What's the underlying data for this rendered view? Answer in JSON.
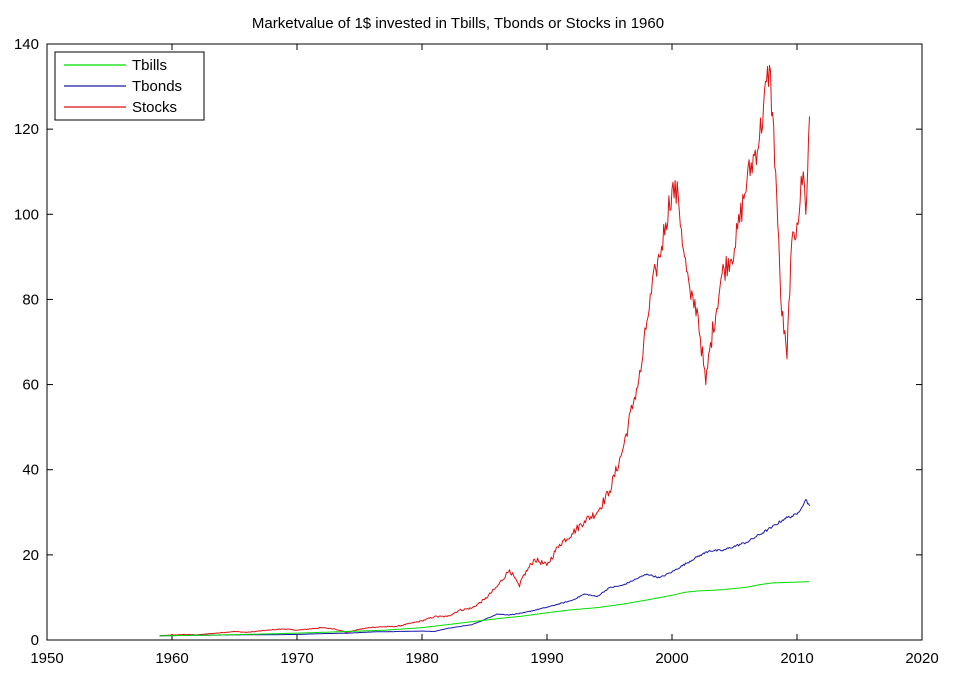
{
  "chart_data": {
    "type": "line",
    "title": "Marketvalue of 1$ invested in Tbills, Tbonds or Stocks in 1960",
    "xlabel": "",
    "ylabel": "",
    "xlim": [
      1950,
      2020
    ],
    "ylim": [
      0,
      140
    ],
    "xticks": [
      1950,
      1960,
      1970,
      1980,
      1990,
      2000,
      2010,
      2020
    ],
    "yticks": [
      0,
      20,
      40,
      60,
      80,
      100,
      120,
      140
    ],
    "xtick_labels": [
      "1950",
      "1960",
      "1970",
      "1980",
      "1990",
      "2000",
      "2010",
      "2020"
    ],
    "ytick_labels": [
      "0",
      "20",
      "40",
      "60",
      "80",
      "100",
      "120",
      "140"
    ],
    "grid": false,
    "legend_position": "top-left",
    "series": [
      {
        "name": "Tbills",
        "color": "#00dd00",
        "x": [
          1959,
          1962,
          1965,
          1968,
          1971,
          1974,
          1977,
          1980,
          1982,
          1984,
          1986,
          1988,
          1990,
          1992,
          1994,
          1996,
          1998,
          2000,
          2001,
          2002,
          2004,
          2006,
          2007,
          2008,
          2009,
          2010,
          2011
        ],
        "y": [
          1.0,
          1.1,
          1.25,
          1.45,
          1.7,
          2.0,
          2.3,
          2.9,
          3.6,
          4.3,
          5.0,
          5.6,
          6.4,
          7.1,
          7.6,
          8.4,
          9.4,
          10.5,
          11.2,
          11.5,
          11.8,
          12.4,
          13.0,
          13.4,
          13.5,
          13.6,
          13.7
        ]
      },
      {
        "name": "Tbonds",
        "color": "#1a1aaa",
        "x": [
          1959,
          1962,
          1965,
          1968,
          1970,
          1972,
          1974,
          1976,
          1978,
          1980,
          1981,
          1982,
          1984,
          1985,
          1986,
          1987,
          1988,
          1990,
          1992,
          1993,
          1994,
          1995,
          1996,
          1998,
          1999,
          2000,
          2002,
          2003,
          2004,
          2006,
          2008,
          2009,
          2010,
          2010.7,
          2011
        ],
        "y": [
          1.0,
          1.1,
          1.2,
          1.25,
          1.3,
          1.5,
          1.6,
          1.9,
          2.0,
          2.1,
          2.0,
          2.7,
          3.6,
          4.8,
          6.1,
          5.9,
          6.3,
          7.7,
          9.3,
          10.8,
          10.2,
          12.3,
          12.8,
          15.5,
          14.6,
          16.0,
          19.5,
          21.0,
          21.0,
          23.0,
          26.5,
          28.5,
          29.5,
          33.0,
          31.5
        ]
      },
      {
        "name": "Stocks",
        "color": "#dd1111",
        "x": [
          1959,
          1961,
          1962,
          1965,
          1966,
          1968,
          1969,
          1970,
          1972,
          1973,
          1974,
          1975,
          1976,
          1978,
          1980,
          1981,
          1982,
          1983,
          1984,
          1985,
          1986,
          1987,
          1987.8,
          1988,
          1989,
          1990,
          1991,
          1992,
          1993,
          1994,
          1995,
          1996,
          1997,
          1997.5,
          1998,
          1998.7,
          1999,
          1999.5,
          2000,
          2000.5,
          2001,
          2001.5,
          2002,
          2002.7,
          2003,
          2004,
          2005,
          2006,
          2007,
          2007.8,
          2008.3,
          2008.7,
          2009.2,
          2009.5,
          2010,
          2010.5,
          2010.7,
          2011
        ],
        "y": [
          1.0,
          1.3,
          1.2,
          2.0,
          1.8,
          2.4,
          2.6,
          2.3,
          2.9,
          2.6,
          1.8,
          2.5,
          3.0,
          3.2,
          4.5,
          5.5,
          5.5,
          7.0,
          7.5,
          9.5,
          12.5,
          16.5,
          12.5,
          14.5,
          19.0,
          17.5,
          22.5,
          25.0,
          28.0,
          30.0,
          35.0,
          44.0,
          57.0,
          63.0,
          75.0,
          87.0,
          90.0,
          98.0,
          106.0,
          104.0,
          90.0,
          80.0,
          78.0,
          60.0,
          68.0,
          86.0,
          92.0,
          108.0,
          118.0,
          135.0,
          110.0,
          80.0,
          66.0,
          90.0,
          98.0,
          110.0,
          100.0,
          123.0
        ]
      }
    ]
  }
}
